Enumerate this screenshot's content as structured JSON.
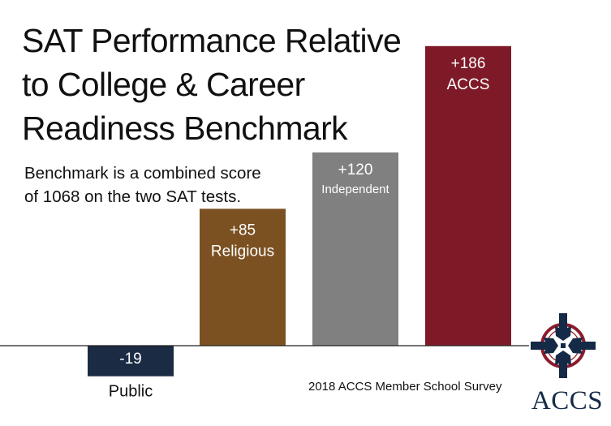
{
  "title_lines": [
    "SAT Performance Relative",
    "to College & Career",
    "Readiness Benchmark"
  ],
  "subtitle_lines": [
    "Benchmark is a combined score",
    "of 1068 on the two SAT tests."
  ],
  "source": "2018 ACCS Member School Survey",
  "logo": {
    "text": "ACCS",
    "icon": "cross-emblem-icon"
  },
  "colors": {
    "public": "#1b2b44",
    "religious": "#7b5121",
    "independent": "#7f807f",
    "accs": "#7e1a27",
    "text": "#111111",
    "logo_navy": "#152a46",
    "logo_red": "#8e1c2b"
  },
  "chart_data": {
    "type": "bar",
    "title": "SAT Performance Relative to College & Career Readiness Benchmark",
    "categories": [
      "Public",
      "Religious",
      "Independent",
      "ACCS"
    ],
    "values": [
      -19,
      85,
      120,
      186
    ],
    "value_labels": [
      "-19",
      "+85",
      "+120",
      "+186"
    ],
    "category_labels": [
      "Public",
      "Religious",
      "Independent",
      "ACCS"
    ],
    "ylim": [
      -30,
      200
    ],
    "xlabel": "",
    "ylabel": "",
    "grid": false,
    "legend": "none"
  }
}
